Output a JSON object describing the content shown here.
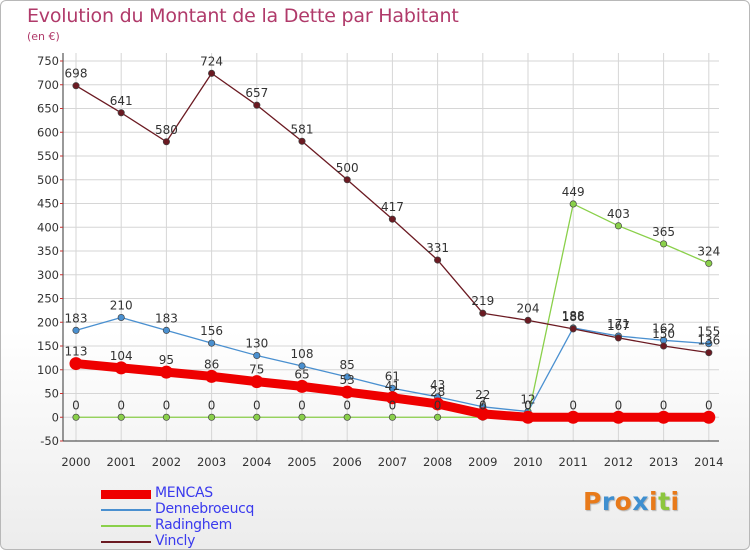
{
  "header": {
    "title": "Evolution du Montant de la Dette par Habitant",
    "subtitle": "(en €)"
  },
  "logo": {
    "letters": [
      "P",
      "r",
      "o",
      "x",
      "i",
      "t",
      "i"
    ],
    "colors": [
      "#e87a1a",
      "#3e8fd0",
      "#e87a1a",
      "#3e8fd0",
      "#e87a1a",
      "#8cc63e",
      "#e87a1a"
    ]
  },
  "chart_data": {
    "type": "line",
    "title": "Evolution du Montant de la Dette par Habitant",
    "subtitle": "(en €)",
    "xlabel": "",
    "ylabel": "",
    "x": [
      "2000",
      "2001",
      "2002",
      "2003",
      "2004",
      "2005",
      "2006",
      "2007",
      "2008",
      "2009",
      "2010",
      "2011",
      "2012",
      "2013",
      "2014"
    ],
    "ylim": [
      -50,
      750
    ],
    "yticks": [
      -50,
      0,
      50,
      100,
      150,
      200,
      250,
      300,
      350,
      400,
      450,
      500,
      550,
      600,
      650,
      700,
      750
    ],
    "grid": true,
    "legend_position": "bottom-left",
    "series": [
      {
        "name": "MENCAS",
        "color": "#ee0000",
        "thick": true,
        "values": [
          113,
          104,
          95,
          86,
          75,
          65,
          53,
          41,
          28,
          7,
          0,
          0,
          0,
          0,
          0
        ]
      },
      {
        "name": "Dennebroeucq",
        "color": "#4a90d0",
        "thick": false,
        "values": [
          183,
          210,
          183,
          156,
          130,
          108,
          85,
          61,
          43,
          22,
          12,
          188,
          171,
          162,
          155
        ]
      },
      {
        "name": "Radinghem",
        "color": "#8ad04a",
        "thick": false,
        "values": [
          0,
          0,
          0,
          0,
          0,
          0,
          0,
          0,
          0,
          0,
          0,
          449,
          403,
          365,
          324
        ]
      },
      {
        "name": "Vincly",
        "color": "#6b1a22",
        "thick": false,
        "values": [
          698,
          641,
          580,
          724,
          657,
          581,
          500,
          417,
          331,
          219,
          204,
          186,
          167,
          150,
          136
        ]
      }
    ]
  }
}
